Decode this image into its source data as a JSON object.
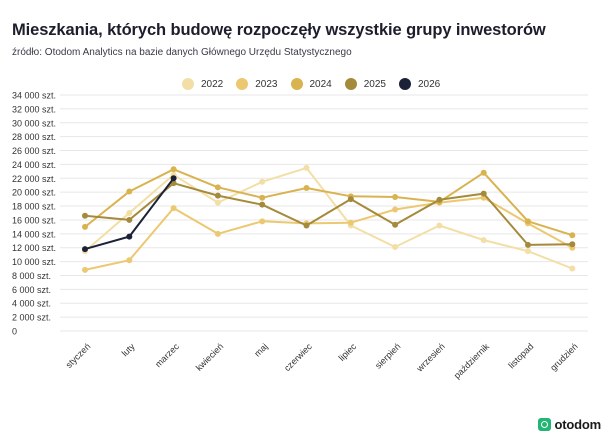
{
  "header": {
    "title": "Mieszkania, których budowę rozpoczęły wszystkie grupy inwestorów",
    "subtitle": "źródło: Otodom Analytics na bazie danych Głównego Urzędu Statystycznego"
  },
  "brand": {
    "name": "otodom",
    "icon": "otodom-logo-icon",
    "color": "#22b573"
  },
  "chart_data": {
    "type": "line",
    "title": "Mieszkania, których budowę rozpoczęły wszystkie grupy inwestorów",
    "xlabel": "",
    "ylabel": "",
    "ylim": [
      0,
      34000
    ],
    "grid": true,
    "legend_position": "top",
    "y_ticks": [
      "34 000 szt.",
      "32 000 szt.",
      "30 000 szt.",
      "28 000 szt.",
      "26 000 szt.",
      "24 000 szt.",
      "22 000 szt.",
      "20 000 szt.",
      "18 000 szt.",
      "16 000 szt.",
      "14 000 szt.",
      "12 000 szt.",
      "10 000 szt.",
      "8 000 szt.",
      "6 000 szt.",
      "4 000 szt.",
      "2 000 szt.",
      "0"
    ],
    "categories": [
      "styczeń",
      "luty",
      "marzec",
      "kwiecień",
      "maj",
      "czerwiec",
      "lipiec",
      "sierpień",
      "wrzesień",
      "październik",
      "listopad",
      "grudzień"
    ],
    "series": [
      {
        "name": "2022",
        "color": "#f3dfa5",
        "values": [
          11500,
          17000,
          22500,
          18500,
          21500,
          23500,
          15200,
          12100,
          15200,
          13100,
          11500,
          9000
        ]
      },
      {
        "name": "2023",
        "color": "#ecc870",
        "values": [
          8800,
          10200,
          17700,
          14000,
          15800,
          15500,
          15600,
          17500,
          18500,
          19200,
          15500,
          12000
        ]
      },
      {
        "name": "2024",
        "color": "#d9b350",
        "values": [
          15000,
          20100,
          23300,
          20700,
          19200,
          20600,
          19400,
          19300,
          18600,
          22800,
          15800,
          13800
        ]
      },
      {
        "name": "2025",
        "color": "#a48a3a",
        "values": [
          16600,
          16000,
          21300,
          19500,
          18200,
          15200,
          19000,
          15300,
          18900,
          19800,
          12400,
          12500
        ]
      },
      {
        "name": "2026",
        "color": "#1b2238",
        "values": [
          11800,
          13600,
          22000,
          null,
          null,
          null,
          null,
          null,
          null,
          null,
          null,
          null
        ]
      }
    ]
  }
}
